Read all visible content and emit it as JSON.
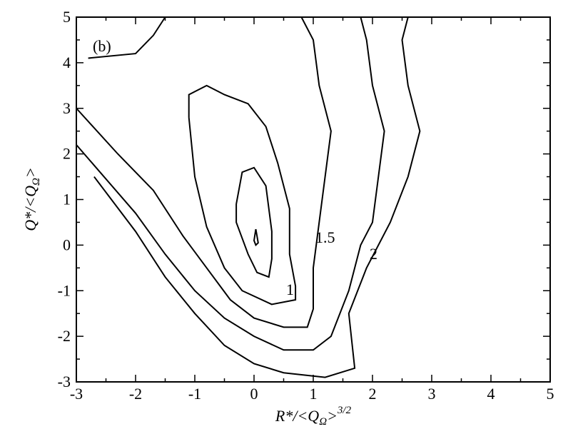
{
  "chart_data": {
    "type": "contour",
    "panel_label": "(b)",
    "xlabel": [
      "R*/<Q",
      "Ω",
      ">",
      "3/2"
    ],
    "ylabel": [
      "Q*/<Q",
      "Ω",
      ">"
    ],
    "xlim": [
      -3,
      5
    ],
    "ylim": [
      -3,
      5
    ],
    "xticks": [
      -3,
      -2,
      -1,
      0,
      1,
      2,
      3,
      4,
      5
    ],
    "yticks": [
      -3,
      -2,
      -1,
      0,
      1,
      2,
      3,
      4,
      5
    ],
    "color": "#000000",
    "series": [
      {
        "x": [
          0.03,
          0.07,
          0.03,
          0.0,
          0.03
        ],
        "y": [
          0.35,
          0.05,
          0.0,
          0.1,
          0.35
        ]
      },
      {
        "x": [
          -0.3,
          -0.2,
          0.0,
          0.2,
          0.3,
          0.3,
          0.25,
          0.05,
          -0.1,
          -0.3,
          -0.3
        ],
        "y": [
          0.9,
          1.6,
          1.7,
          1.3,
          0.3,
          -0.3,
          -0.7,
          -0.6,
          -0.2,
          0.5,
          0.9
        ]
      },
      {
        "label": "1",
        "x": [
          -1.1,
          -1.1,
          -0.8,
          -0.5,
          -0.1,
          0.2,
          0.4,
          0.6,
          0.6,
          0.6,
          0.7,
          0.7,
          0.3,
          -0.2,
          -0.5,
          -0.8,
          -1.0,
          -1.1
        ],
        "y": [
          2.8,
          3.3,
          3.5,
          3.3,
          3.1,
          2.6,
          1.8,
          0.8,
          0.4,
          -0.2,
          -0.9,
          -1.2,
          -1.3,
          -1.0,
          -0.5,
          0.4,
          1.5,
          2.8
        ]
      },
      {
        "label": "1.5",
        "x": [
          -1.5,
          -1.7,
          -2.0,
          -2.8,
          null,
          -3.0,
          -2.3,
          -1.7,
          -1.2,
          -0.8,
          -0.4,
          0.0,
          0.5,
          0.9,
          1.0,
          1.0,
          1.1,
          1.2,
          1.3,
          1.1,
          1.0,
          0.8
        ],
        "y": [
          5.0,
          4.6,
          4.2,
          4.1,
          null,
          3.0,
          2.0,
          1.2,
          0.2,
          -0.5,
          -1.2,
          -1.6,
          -1.8,
          -1.8,
          -1.4,
          -0.5,
          0.5,
          1.5,
          2.5,
          3.5,
          4.5,
          5.0
        ]
      },
      {
        "label": "2",
        "x": [
          -3.0,
          -2.6,
          -2.0,
          -1.5,
          -1.0,
          -0.5,
          0.0,
          0.5,
          1.0,
          1.3,
          1.6,
          1.8,
          2.0,
          2.1,
          2.2,
          2.0,
          1.9,
          1.8
        ],
        "y": [
          2.2,
          1.6,
          0.7,
          -0.2,
          -1.0,
          -1.6,
          -2.0,
          -2.3,
          -2.3,
          -2.0,
          -1.0,
          0.0,
          0.5,
          1.5,
          2.5,
          3.5,
          4.5,
          5.0
        ]
      },
      {
        "x": [
          -2.7,
          -2.0,
          -1.5,
          -1.0,
          -0.5,
          0.0,
          0.5,
          1.2,
          1.7,
          1.6,
          1.9,
          2.3,
          2.6,
          2.8,
          2.6,
          2.5,
          2.6
        ],
        "y": [
          1.5,
          0.3,
          -0.7,
          -1.5,
          -2.2,
          -2.6,
          -2.8,
          -2.9,
          -2.7,
          -1.5,
          -0.5,
          0.5,
          1.5,
          2.5,
          3.5,
          4.5,
          5.0
        ]
      }
    ]
  }
}
